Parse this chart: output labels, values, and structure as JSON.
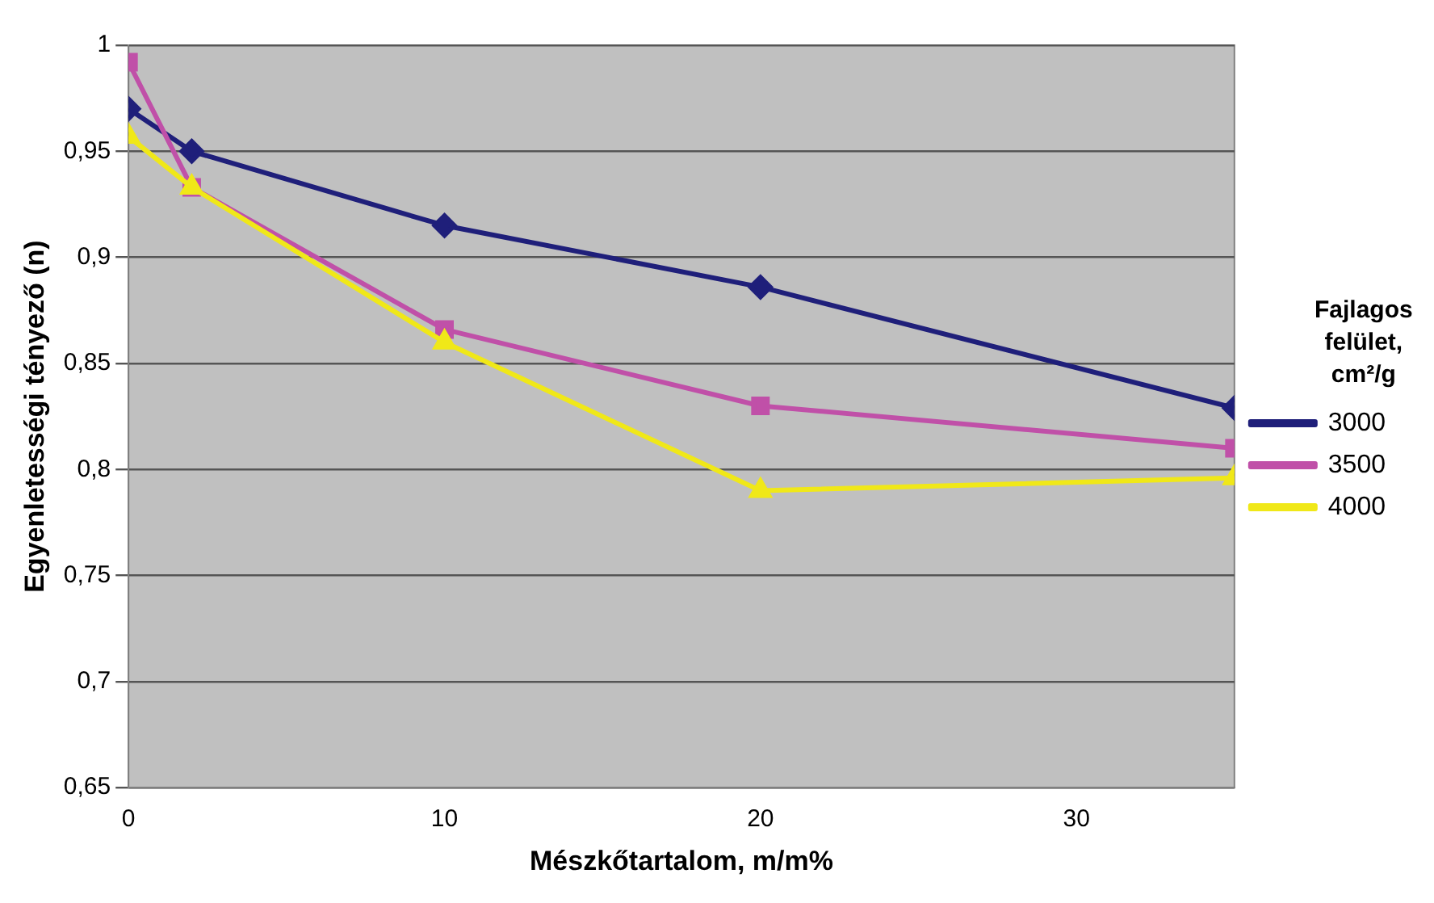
{
  "chart_data": {
    "type": "line",
    "xlabel": "Mészkőtartalom, m/m%",
    "ylabel": "Egyenletességi tényező (n)",
    "legend_title": "Fajlagos felület, cm²/g",
    "x": [
      0,
      2,
      10,
      20,
      35
    ],
    "series": [
      {
        "name": "3000",
        "color": "#1f1f7a",
        "marker": "diamond",
        "values": [
          0.97,
          0.95,
          0.915,
          0.886,
          0.829
        ]
      },
      {
        "name": "3500",
        "color": "#c050a8",
        "marker": "square",
        "values": [
          0.992,
          0.933,
          0.866,
          0.83,
          0.81
        ]
      },
      {
        "name": "4000",
        "color": "#f0e818",
        "marker": "triangle",
        "values": [
          0.957,
          0.933,
          0.86,
          0.79,
          0.796
        ]
      }
    ],
    "xlim": [
      0,
      35
    ],
    "xticks": [
      0,
      10,
      20,
      30
    ],
    "ylim": [
      0.65,
      1
    ],
    "yticks": [
      {
        "value": 0.65,
        "label": "0,65"
      },
      {
        "value": 0.7,
        "label": "0,7"
      },
      {
        "value": 0.75,
        "label": "0,75"
      },
      {
        "value": 0.8,
        "label": "0,8"
      },
      {
        "value": 0.85,
        "label": "0,85"
      },
      {
        "value": 0.9,
        "label": "0,9"
      },
      {
        "value": 0.95,
        "label": "0,95"
      },
      {
        "value": 1,
        "label": "1"
      }
    ],
    "grid": "y",
    "legend": "right",
    "line_style": "solid"
  }
}
